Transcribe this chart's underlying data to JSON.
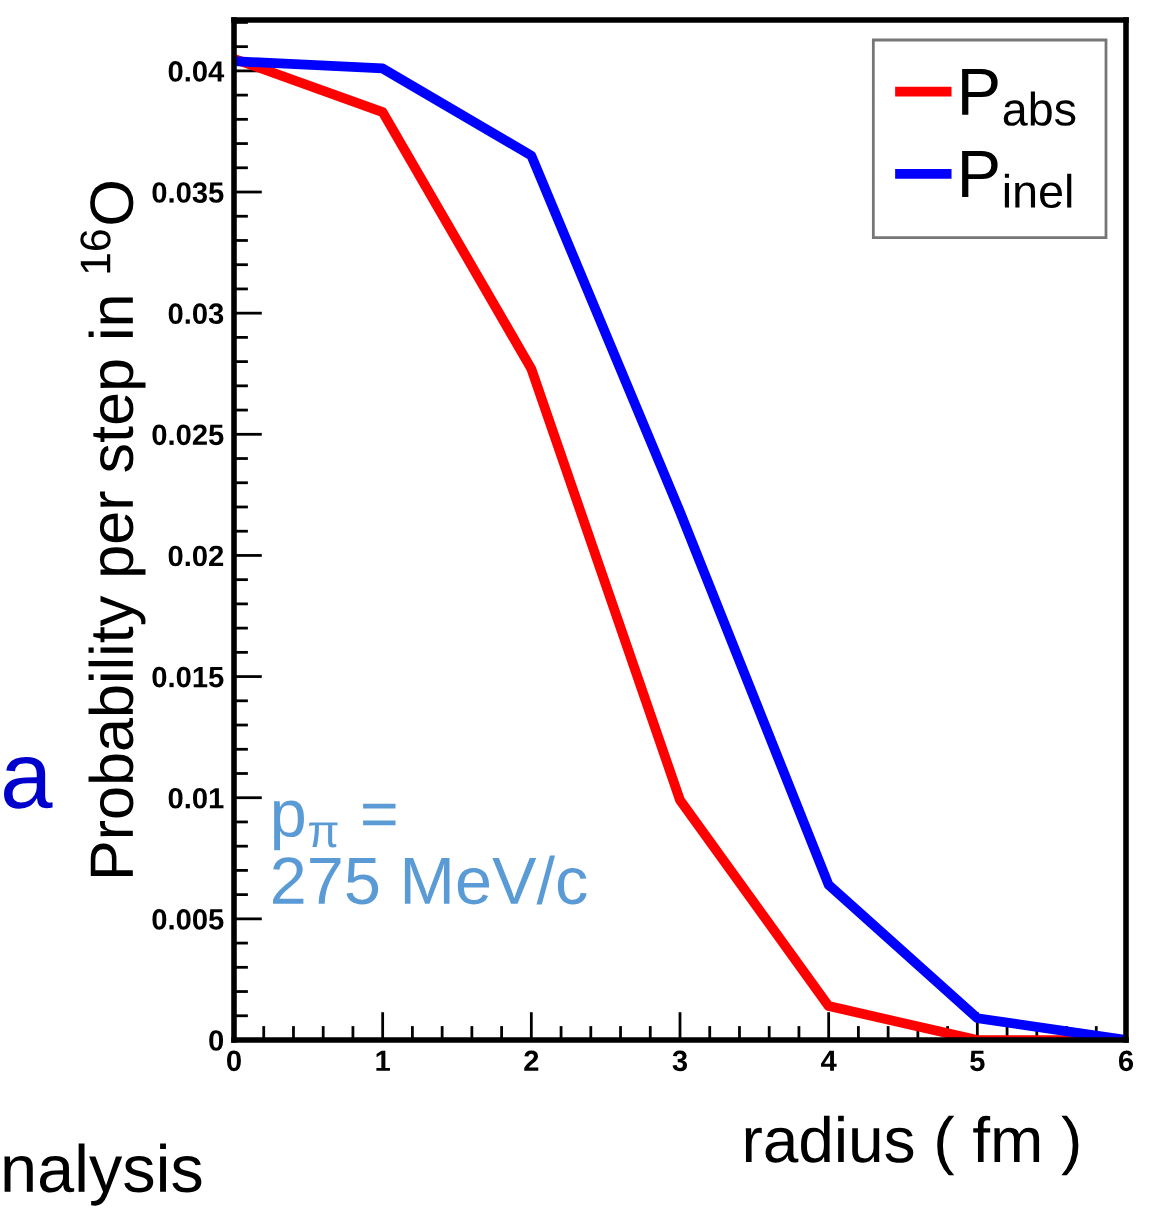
{
  "chart_data": {
    "type": "line",
    "xlabel": "radius ( fm )",
    "ylabel": "Probability per step in $^{16}$O",
    "x": [
      0,
      1,
      2,
      3,
      4,
      5,
      6
    ],
    "series": [
      {
        "name": "P$_{abs}$",
        "color": "#ff0000",
        "values": [
          0.0405,
          0.0383,
          0.0277,
          0.0099,
          0.0014,
          0,
          0
        ]
      },
      {
        "name": "P$_{inel}$",
        "color": "#0000ff",
        "values": [
          0.0404,
          0.0401,
          0.0365,
          0.0218,
          0.0064,
          0.0009,
          0
        ]
      }
    ],
    "xlim": [
      0,
      6
    ],
    "xticks": [
      0,
      1,
      2,
      3,
      4,
      5,
      6
    ],
    "ylim": [
      0,
      0.0421
    ],
    "yticks": [
      0,
      0.005,
      0.01,
      0.015,
      0.02,
      0.025,
      0.03,
      0.035,
      0.04
    ],
    "legend": "top right",
    "grid": false,
    "marker": "none",
    "line_style": "solid",
    "annotations": [
      "p$_{π}$ =\n275 MeV/c",
      "a",
      "nalysis"
    ]
  }
}
